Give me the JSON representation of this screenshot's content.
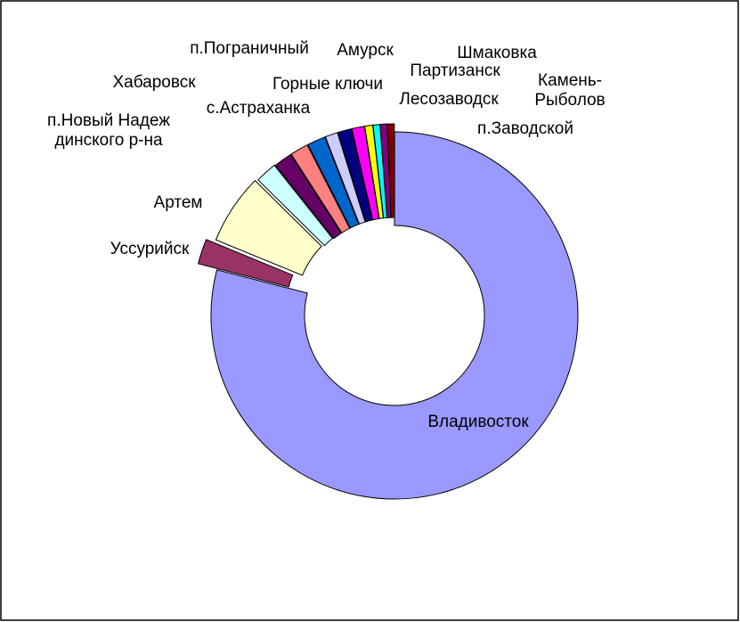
{
  "chart_data": {
    "type": "donut",
    "categories": [
      "Владивосток",
      "Уссурийск",
      "Артем",
      "п.Новый Надеждинского р-на",
      "Хабаровск",
      "с.Астраханка",
      "п.Пограничный",
      "Горные ключи",
      "Амурск",
      "Партизанск",
      "Лесозаводск",
      "Шмаковка",
      "Камень-Рыболов",
      "п.Заводской"
    ],
    "values": [
      79,
      2.2,
      6.2,
      1.9,
      1.6,
      1.6,
      1.6,
      1.1,
      1.2,
      1.1,
      0.7,
      0.6,
      0.6,
      0.6
    ],
    "colors": [
      "#9999ff",
      "#993366",
      "#ffffcc",
      "#ccffff",
      "#660066",
      "#ff8080",
      "#0066cc",
      "#ccccff",
      "#000080",
      "#ff00ff",
      "#ffff00",
      "#00ffff",
      "#800080",
      "#800000"
    ]
  }
}
